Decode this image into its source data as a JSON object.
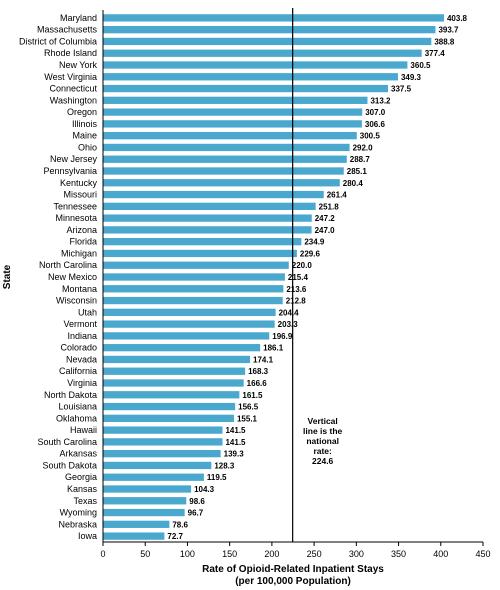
{
  "chart_data": {
    "type": "bar",
    "orientation": "horizontal",
    "xlabel": [
      "Rate of Opioid-Related Inpatient Stays",
      "(per 100,000 Population)"
    ],
    "ylabel": "State",
    "xlim": [
      0,
      450
    ],
    "xticks": [
      0,
      50,
      100,
      150,
      200,
      250,
      300,
      350,
      400,
      450
    ],
    "grid": false,
    "bar_color": "#4aa8cf",
    "reference_line": {
      "value": 224.6,
      "annotation": [
        "Vertical",
        "line is the",
        "national",
        "rate:",
        "224.6"
      ]
    },
    "categories": [
      "Maryland",
      "Massachusetts",
      "District of Columbia",
      "Rhode Island",
      "New York",
      "West Virginia",
      "Connecticut",
      "Washington",
      "Oregon",
      "Illinois",
      "Maine",
      "Ohio",
      "New Jersey",
      "Pennsylvania",
      "Kentucky",
      "Missouri",
      "Tennessee",
      "Minnesota",
      "Arizona",
      "Florida",
      "Michigan",
      "North Carolina",
      "New Mexico",
      "Montana",
      "Wisconsin",
      "Utah",
      "Vermont",
      "Indiana",
      "Colorado",
      "Nevada",
      "California",
      "Virginia",
      "North Dakota",
      "Louisiana",
      "Oklahoma",
      "Hawaii",
      "South Carolina",
      "Arkansas",
      "South Dakota",
      "Georgia",
      "Kansas",
      "Texas",
      "Wyoming",
      "Nebraska",
      "Iowa"
    ],
    "values": [
      403.8,
      393.7,
      388.8,
      377.4,
      360.5,
      349.3,
      337.5,
      313.2,
      307.0,
      306.6,
      300.5,
      292.0,
      288.7,
      285.1,
      280.4,
      261.4,
      251.8,
      247.2,
      247.0,
      234.9,
      229.6,
      220.0,
      215.4,
      213.6,
      212.8,
      204.4,
      203.3,
      196.9,
      186.1,
      174.1,
      168.3,
      166.6,
      161.5,
      156.5,
      155.1,
      141.5,
      141.5,
      139.3,
      128.3,
      119.5,
      104.3,
      98.6,
      96.7,
      78.6,
      72.7
    ]
  }
}
